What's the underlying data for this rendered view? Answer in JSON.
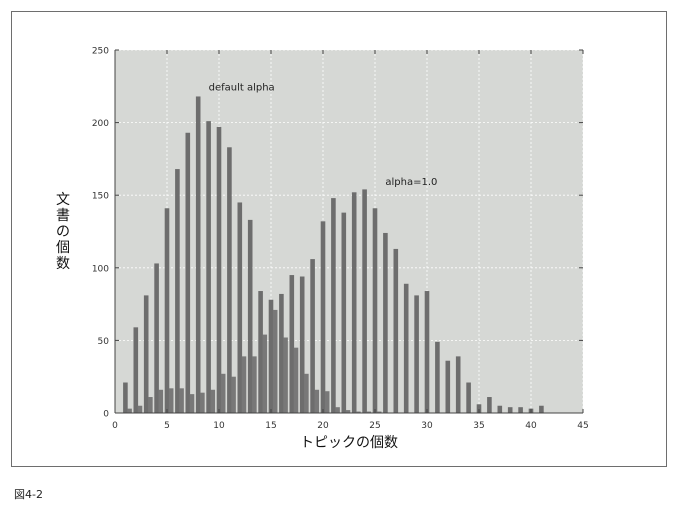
{
  "caption": "図4-2",
  "chart_data": {
    "type": "bar",
    "xlabel": "トピックの個数",
    "ylabel": [
      "文",
      "書",
      "の",
      "個",
      "数"
    ],
    "xlim": [
      0,
      45
    ],
    "ylim": [
      0,
      250
    ],
    "xticks": [
      0,
      5,
      10,
      15,
      20,
      25,
      30,
      35,
      40,
      45
    ],
    "yticks": [
      0,
      50,
      100,
      150,
      200,
      250
    ],
    "grid": true,
    "background": "#d6d8d5",
    "annotations": [
      {
        "text": "default alpha",
        "x": 9.0,
        "y": 222
      },
      {
        "text": "alpha=1.0",
        "x": 26.0,
        "y": 157
      }
    ],
    "series": [
      {
        "color": "#6d6d6d",
        "x": [
          1,
          2,
          3,
          4,
          5,
          6,
          7,
          8,
          9,
          10,
          11,
          12,
          13,
          14,
          15,
          16,
          17,
          18,
          19,
          20,
          21,
          22,
          23,
          24,
          25,
          26,
          27,
          28,
          29,
          30,
          31,
          32,
          33,
          34,
          35,
          36,
          37,
          38,
          39,
          40,
          41
        ],
        "values": [
          21,
          59,
          81,
          103,
          141,
          168,
          193,
          218,
          201,
          197,
          183,
          145,
          133,
          84,
          78,
          82,
          95,
          94,
          106,
          132,
          148,
          138,
          152,
          154,
          141,
          124,
          113,
          89,
          81,
          84,
          49,
          36,
          39,
          21,
          6,
          11,
          5,
          4,
          4,
          3,
          5
        ]
      },
      {
        "color": "#787878",
        "x": [
          1.4,
          2.4,
          3.4,
          4.4,
          5.4,
          6.4,
          7.4,
          8.4,
          9.4,
          10.4,
          11.4,
          12.4,
          13.4,
          14.4,
          15.4,
          16.4,
          17.4,
          18.4,
          19.4,
          20.4,
          21.4,
          22.4,
          23.4,
          24.4,
          25.4
        ],
        "values": [
          3,
          5,
          11,
          16,
          17,
          17,
          13,
          14,
          16,
          27,
          25,
          39,
          39,
          54,
          71,
          52,
          45,
          27,
          16,
          15,
          4,
          2,
          1,
          1,
          1
        ]
      }
    ]
  }
}
